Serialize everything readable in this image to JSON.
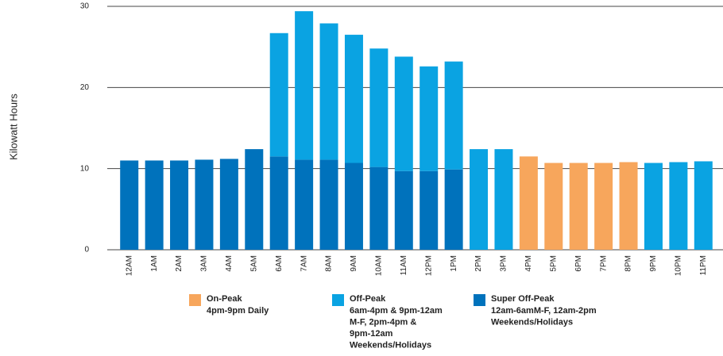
{
  "chart_data": {
    "type": "stacked-bar",
    "y_label": "Kilowatt Hours",
    "categories": [
      "12AM",
      "1AM",
      "2AM",
      "3AM",
      "4AM",
      "5AM",
      "6AM",
      "7AM",
      "8AM",
      "9AM",
      "10AM",
      "11AM",
      "12PM",
      "1PM",
      "2PM",
      "3PM",
      "4PM",
      "5PM",
      "6PM",
      "7PM",
      "8PM",
      "9PM",
      "10PM",
      "11PM"
    ],
    "series": [
      {
        "name": "Super Off-Peak",
        "color": "#0072bc",
        "description": [
          "12am-6amM-F, 12am-2pm",
          "Weekends/Holidays"
        ],
        "values": [
          11.0,
          11.0,
          11.0,
          11.1,
          11.2,
          12.4,
          11.5,
          11.1,
          11.1,
          10.7,
          10.2,
          9.7,
          9.7,
          9.9,
          null,
          null,
          null,
          null,
          null,
          null,
          null,
          null,
          null,
          null
        ]
      },
      {
        "name": "Off-Peak",
        "color": "#0aa3e2",
        "description": [
          "6am-4pm & 9pm-12am",
          "M-F, 2pm-4pm &",
          "9pm-12am",
          "Weekends/Holidays"
        ],
        "values": [
          null,
          null,
          null,
          null,
          null,
          null,
          15.2,
          18.3,
          16.8,
          15.8,
          14.6,
          14.1,
          12.9,
          13.3,
          12.4,
          12.4,
          null,
          null,
          null,
          null,
          null,
          10.7,
          10.8,
          10.9
        ]
      },
      {
        "name": "On-Peak",
        "color": "#f7a65c",
        "description": [
          "4pm-9pm Daily"
        ],
        "values": [
          null,
          null,
          null,
          null,
          null,
          null,
          null,
          null,
          null,
          null,
          null,
          null,
          null,
          null,
          null,
          null,
          11.5,
          10.7,
          10.7,
          10.7,
          10.8,
          null,
          null,
          null
        ]
      }
    ],
    "ylim": [
      0,
      30
    ],
    "yticks": [
      0,
      10,
      20,
      30
    ],
    "grid": true,
    "legend_order": [
      2,
      1,
      0
    ]
  }
}
